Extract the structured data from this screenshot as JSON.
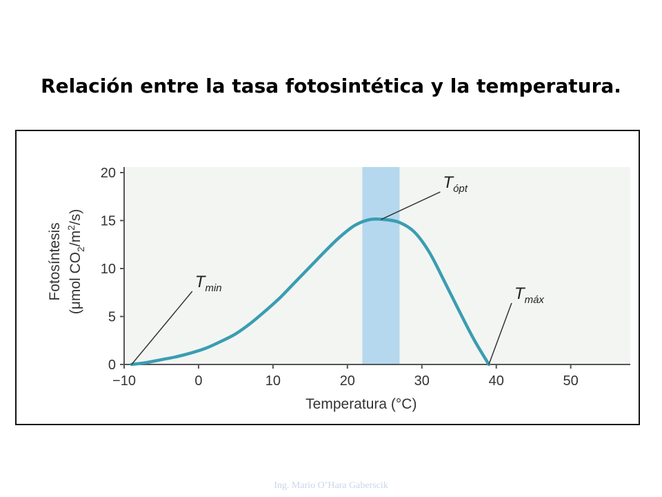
{
  "slide": {
    "title": "Relación entre la tasa fotosintética y la temperatura.",
    "footer": "Ing. Mario O’Hara Gaberscik"
  },
  "chart_data": {
    "type": "line",
    "xlabel": "Temperatura (°C)",
    "ylabel_line1": "Fotosíntesis",
    "ylabel_line2": "(μmol CO",
    "ylabel_sub": "2",
    "ylabel_mid": "/m",
    "ylabel_sup": "2",
    "ylabel_end": "/s)",
    "xlim": [
      -10,
      58
    ],
    "ylim": [
      0,
      20
    ],
    "x_ticks": [
      -10,
      0,
      10,
      20,
      30,
      40,
      50
    ],
    "x_tick_labels": [
      "−10",
      "0",
      "10",
      "20",
      "30",
      "40",
      "50"
    ],
    "y_ticks": [
      0,
      5,
      10,
      15,
      20
    ],
    "y_tick_labels": [
      "0",
      "5",
      "10",
      "15",
      "20"
    ],
    "grid": false,
    "optimum_band": [
      22,
      27
    ],
    "series": [
      {
        "color": "#3a9db2",
        "x": [
          -9,
          -7,
          -5,
          -3,
          -1,
          1,
          3,
          5,
          7,
          9,
          11,
          13,
          15,
          17,
          19,
          21,
          23,
          25,
          27,
          29,
          31,
          33,
          35,
          37,
          39
        ],
        "y": [
          0,
          0.2,
          0.5,
          0.8,
          1.2,
          1.7,
          2.4,
          3.2,
          4.3,
          5.6,
          7.0,
          8.6,
          10.2,
          11.8,
          13.3,
          14.5,
          15.1,
          15.1,
          14.8,
          13.8,
          11.7,
          8.7,
          5.6,
          2.6,
          0
        ]
      }
    ],
    "annotations": [
      {
        "main": "T",
        "sub": "min",
        "x": -9,
        "y": 0
      },
      {
        "main": "T",
        "sub": "ópt",
        "x": 24.5,
        "y": 15.1
      },
      {
        "main": "T",
        "sub": "máx",
        "x": 39,
        "y": 0
      }
    ]
  }
}
